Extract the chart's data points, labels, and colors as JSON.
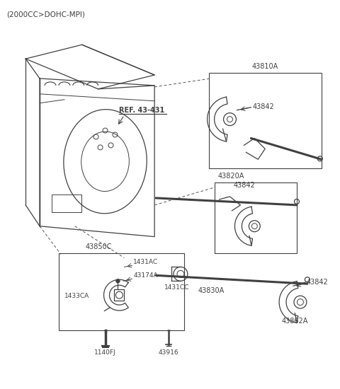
{
  "title": "(2000CC>DOHC-MPI)",
  "background_color": "#ffffff",
  "line_color": "#404040",
  "text_color": "#404040",
  "figsize": [
    4.8,
    5.5
  ],
  "dpi": 100,
  "parts": {
    "ref_label": "REF. 43-431",
    "p43810A": "43810A",
    "p43820A": "43820A",
    "p43830A": "43830A",
    "p43842_1": "43842",
    "p43842_2": "43842",
    "p43842_3": "43842",
    "p43850C": "43850C",
    "p43862A": "43862A",
    "p1431AC": "1431AC",
    "p1431CC": "1431CC",
    "p1433CA": "1433CA",
    "p43174A": "43174A",
    "p43916": "43916",
    "p1140FJ": "1140FJ"
  }
}
